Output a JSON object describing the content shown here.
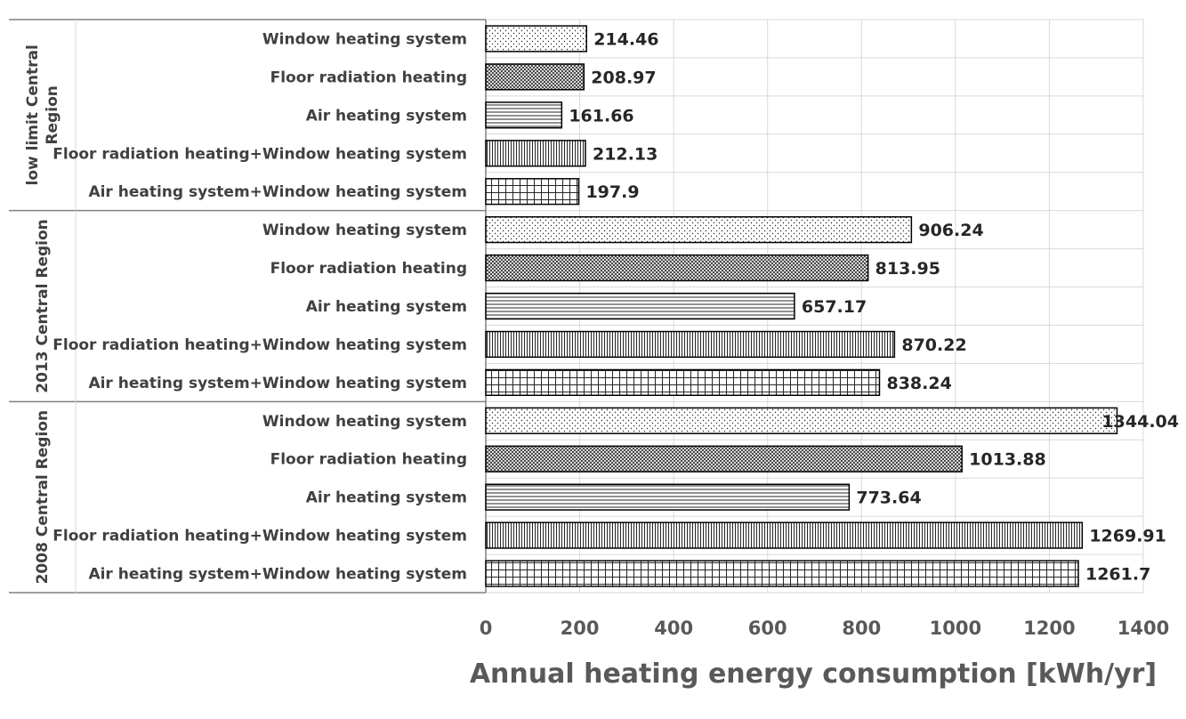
{
  "chart_data": {
    "type": "bar",
    "orientation": "horizontal",
    "xlabel": "Annual heating energy consumption [kWh/yr]",
    "xlim": [
      0,
      1400
    ],
    "xticks": [
      0,
      200,
      400,
      600,
      800,
      1000,
      1200,
      1400
    ],
    "grid": true,
    "groups": [
      {
        "name": "low limit Central Region",
        "name_lines": [
          "low limit Central",
          "Region"
        ],
        "bars": [
          {
            "label": "Window heating system",
            "value": 214.46,
            "value_label": "214.46",
            "pattern": "dots"
          },
          {
            "label": "Floor radiation heating",
            "value": 208.97,
            "value_label": "208.97",
            "pattern": "crosshatch"
          },
          {
            "label": "Air heating system",
            "value": 161.66,
            "value_label": "161.66",
            "pattern": "hlines"
          },
          {
            "label": "Floor radiation heating+Window heating system",
            "value": 212.13,
            "value_label": "212.13",
            "pattern": "vlines"
          },
          {
            "label": "Air heating system+Window heating system",
            "value": 197.9,
            "value_label": "197.9",
            "pattern": "grid"
          }
        ]
      },
      {
        "name": "2013 Central Region",
        "name_lines": [
          "2013 Central Region"
        ],
        "bars": [
          {
            "label": "Window heating system",
            "value": 906.24,
            "value_label": "906.24",
            "pattern": "dots"
          },
          {
            "label": "Floor radiation heating",
            "value": 813.95,
            "value_label": "813.95",
            "pattern": "crosshatch"
          },
          {
            "label": "Air heating system",
            "value": 657.17,
            "value_label": "657.17",
            "pattern": "hlines"
          },
          {
            "label": "Floor radiation heating+Window heating system",
            "value": 870.22,
            "value_label": "870.22",
            "pattern": "vlines"
          },
          {
            "label": "Air heating system+Window heating system",
            "value": 838.24,
            "value_label": "838.24",
            "pattern": "grid"
          }
        ]
      },
      {
        "name": "2008 Central Region",
        "name_lines": [
          "2008 Central Region"
        ],
        "bars": [
          {
            "label": "Window heating system",
            "value": 1344.04,
            "value_label": "1344.04",
            "pattern": "dots"
          },
          {
            "label": "Floor radiation heating",
            "value": 1013.88,
            "value_label": "1013.88",
            "pattern": "crosshatch"
          },
          {
            "label": "Air heating system",
            "value": 773.64,
            "value_label": "773.64",
            "pattern": "hlines"
          },
          {
            "label": "Floor radiation heating+Window heating system",
            "value": 1269.91,
            "value_label": "1269.91",
            "pattern": "vlines"
          },
          {
            "label": "Air heating system+Window heating system",
            "value": 1261.7,
            "value_label": "1261.7",
            "pattern": "grid"
          }
        ]
      }
    ],
    "colors": {
      "bar_stroke": "#000000",
      "pattern": "#262626",
      "grid": "#d9d9d9",
      "axis": "#808080"
    }
  }
}
